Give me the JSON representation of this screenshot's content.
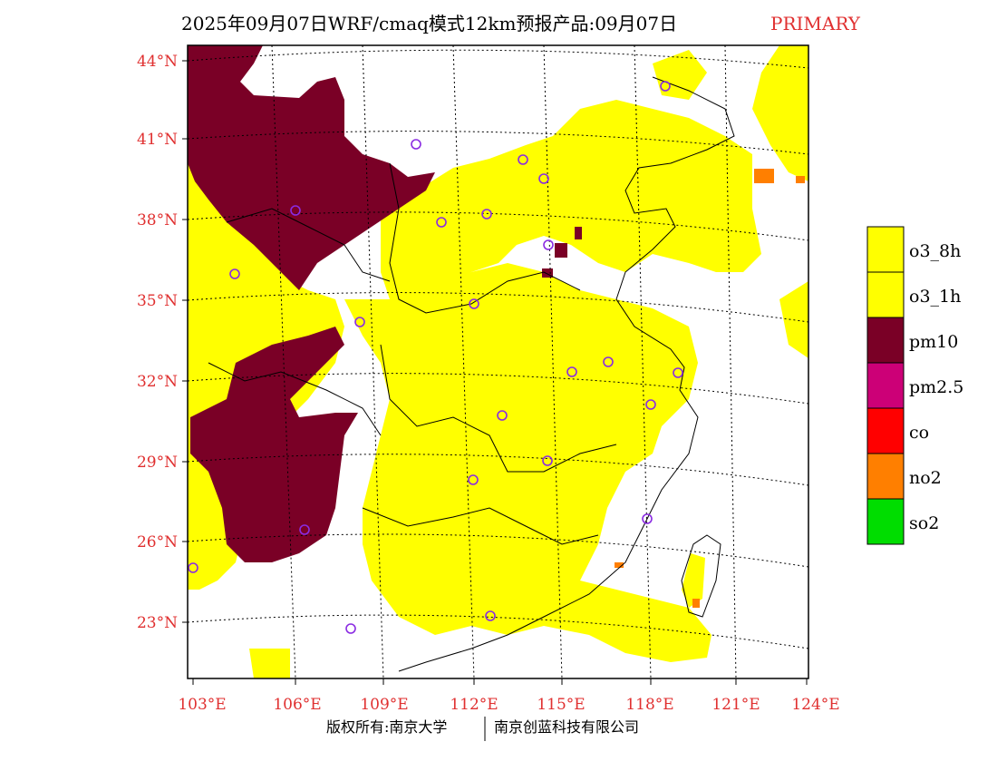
{
  "header": {
    "title": "2025年09月07日WRF/cmaq模式12km预报产品:09月07日",
    "tag": "PRIMARY"
  },
  "axes": {
    "lat_labels": [
      "44°N",
      "41°N",
      "38°N",
      "35°N",
      "32°N",
      "29°N",
      "26°N",
      "23°N"
    ],
    "lon_labels": [
      "103°E",
      "106°E",
      "109°E",
      "112°E",
      "115°E",
      "118°E",
      "121°E",
      "124°E"
    ]
  },
  "legend": {
    "items": [
      {
        "label": "o3_8h",
        "color": "#ffff00"
      },
      {
        "label": "o3_1h",
        "color": "#ffff00"
      },
      {
        "label": "pm10",
        "color": "#7a0026"
      },
      {
        "label": "pm2.5",
        "color": "#cc0077"
      },
      {
        "label": "co",
        "color": "#ff0000"
      },
      {
        "label": "no2",
        "color": "#ff7f00"
      },
      {
        "label": "so2",
        "color": "#00dd00"
      }
    ]
  },
  "colors": {
    "o3": "#ffff00",
    "pm10": "#7a0026",
    "no2": "#ff7f00",
    "station_marker": "#8a2be2",
    "tick_label": "#e03030"
  },
  "footer": {
    "left": "版权所有:南京大学",
    "right": "南京创蓝科技有限公司"
  }
}
